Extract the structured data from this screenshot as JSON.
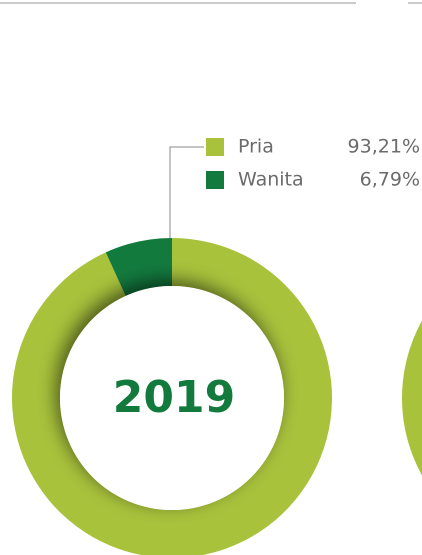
{
  "chart_data": {
    "type": "donut",
    "center_label": "2019",
    "categories": [
      "Pria",
      "Wanita"
    ],
    "values": [
      93.21,
      6.79
    ],
    "value_labels": [
      "93,21%",
      "6,79%"
    ],
    "colors": [
      "#a8c23c",
      "#137a3e"
    ]
  }
}
